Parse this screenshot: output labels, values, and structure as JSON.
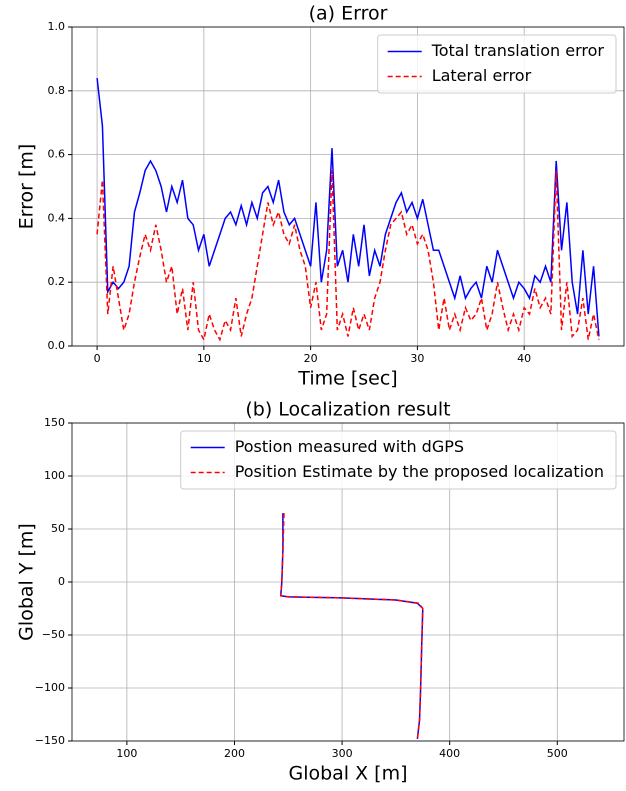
{
  "chart_data": [
    {
      "type": "line",
      "title": "(a) Error",
      "xlabel": "Time [sec]",
      "ylabel": "Error [m]",
      "x": [
        0,
        0.5,
        1,
        1.5,
        2,
        2.5,
        3,
        3.5,
        4,
        4.5,
        5,
        5.5,
        6,
        6.5,
        7,
        7.5,
        8,
        8.5,
        9,
        9.5,
        10,
        10.5,
        11,
        11.5,
        12,
        12.5,
        13,
        13.5,
        14,
        14.5,
        15,
        15.5,
        16,
        16.5,
        17,
        17.5,
        18,
        18.5,
        19,
        19.5,
        20,
        20.5,
        21,
        21.5,
        22,
        22.5,
        23,
        23.5,
        24,
        24.5,
        25,
        25.5,
        26,
        26.5,
        27,
        27.5,
        28,
        28.5,
        29,
        29.5,
        30,
        30.5,
        31,
        31.5,
        32,
        32.5,
        33,
        33.5,
        34,
        34.5,
        35,
        35.5,
        36,
        36.5,
        37,
        37.5,
        38,
        38.5,
        39,
        39.5,
        40,
        40.5,
        41,
        41.5,
        42,
        42.5,
        43,
        43.5,
        44,
        44.5,
        45,
        45.5,
        46,
        46.5,
        47
      ],
      "series": [
        {
          "name": "Total translation error",
          "color": "#0000ff",
          "dash": false,
          "values": [
            0.84,
            0.69,
            0.17,
            0.2,
            0.18,
            0.2,
            0.25,
            0.42,
            0.48,
            0.55,
            0.58,
            0.55,
            0.5,
            0.42,
            0.5,
            0.45,
            0.52,
            0.4,
            0.38,
            0.3,
            0.35,
            0.25,
            0.3,
            0.35,
            0.4,
            0.42,
            0.38,
            0.44,
            0.38,
            0.45,
            0.4,
            0.48,
            0.5,
            0.45,
            0.52,
            0.42,
            0.38,
            0.4,
            0.35,
            0.3,
            0.25,
            0.45,
            0.2,
            0.3,
            0.62,
            0.25,
            0.3,
            0.2,
            0.35,
            0.25,
            0.38,
            0.22,
            0.3,
            0.25,
            0.35,
            0.4,
            0.45,
            0.48,
            0.42,
            0.45,
            0.4,
            0.46,
            0.38,
            0.3,
            0.3,
            0.25,
            0.2,
            0.15,
            0.22,
            0.15,
            0.18,
            0.2,
            0.15,
            0.25,
            0.2,
            0.3,
            0.25,
            0.2,
            0.15,
            0.2,
            0.18,
            0.15,
            0.22,
            0.2,
            0.25,
            0.2,
            0.58,
            0.3,
            0.45,
            0.2,
            0.1,
            0.3,
            0.1,
            0.25,
            0.03
          ]
        },
        {
          "name": "Lateral error",
          "color": "#ff0000",
          "dash": true,
          "values": [
            0.35,
            0.52,
            0.1,
            0.25,
            0.15,
            0.05,
            0.1,
            0.2,
            0.28,
            0.35,
            0.3,
            0.38,
            0.3,
            0.2,
            0.25,
            0.1,
            0.18,
            0.05,
            0.2,
            0.05,
            0.02,
            0.1,
            0.05,
            0.02,
            0.08,
            0.05,
            0.15,
            0.03,
            0.1,
            0.15,
            0.25,
            0.35,
            0.45,
            0.38,
            0.42,
            0.35,
            0.32,
            0.38,
            0.3,
            0.25,
            0.12,
            0.2,
            0.05,
            0.1,
            0.55,
            0.05,
            0.1,
            0.03,
            0.12,
            0.05,
            0.1,
            0.05,
            0.15,
            0.2,
            0.3,
            0.38,
            0.4,
            0.42,
            0.35,
            0.38,
            0.32,
            0.35,
            0.3,
            0.2,
            0.05,
            0.15,
            0.05,
            0.1,
            0.05,
            0.12,
            0.08,
            0.1,
            0.15,
            0.05,
            0.1,
            0.2,
            0.12,
            0.05,
            0.1,
            0.05,
            0.12,
            0.1,
            0.18,
            0.12,
            0.15,
            0.1,
            0.55,
            0.05,
            0.2,
            0.03,
            0.05,
            0.15,
            0.02,
            0.1,
            0.02
          ]
        }
      ],
      "xlim": [
        -2.35,
        49.35
      ],
      "xticks": [
        0,
        10,
        20,
        30,
        40
      ],
      "ylim": [
        0,
        1.0
      ],
      "yticks": [
        {
          "value": 0,
          "label": "0.0"
        },
        0.2,
        0.4,
        0.6,
        0.8,
        {
          "value": 1.0,
          "label": "1.0"
        }
      ],
      "grid": true,
      "legend": "upper right"
    },
    {
      "type": "line",
      "title": "(b) Localization result",
      "xlabel": "Global X [m]",
      "ylabel": "Global Y [m]",
      "series": [
        {
          "name": "Postion measured with dGPS",
          "color": "#0000ff",
          "dash": false,
          "x": [
            245,
            245,
            244,
            243,
            250,
            300,
            350,
            370,
            375,
            374,
            373,
            372,
            370
          ],
          "values": [
            65,
            30,
            0,
            -13,
            -14,
            -15,
            -17,
            -20,
            -25,
            -60,
            -100,
            -130,
            -148
          ]
        },
        {
          "name": "Position Estimate by the proposed localization",
          "color": "#ff0000",
          "dash": true,
          "x": [
            246,
            245,
            244,
            243,
            250,
            300,
            350,
            371,
            375,
            374,
            373,
            372,
            370
          ],
          "values": [
            65,
            30,
            0,
            -13,
            -14,
            -15,
            -17,
            -20,
            -25,
            -60,
            -100,
            -130,
            -148
          ]
        }
      ],
      "xlim": [
        49,
        562
      ],
      "xticks": [
        100,
        200,
        300,
        400,
        500
      ],
      "ylim": [
        -150,
        150
      ],
      "yticks": [
        {
          "value": -150,
          "label": "−150"
        },
        {
          "value": -100,
          "label": "−100"
        },
        {
          "value": -50,
          "label": "−50"
        },
        0,
        50,
        100,
        150
      ],
      "grid": true,
      "legend": "upper right"
    }
  ]
}
